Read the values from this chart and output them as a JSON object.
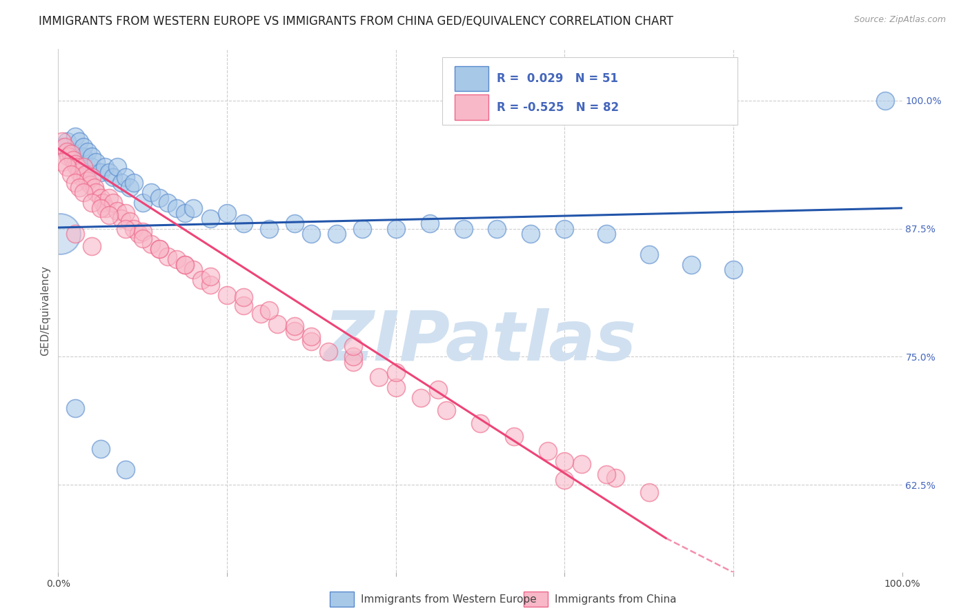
{
  "title": "IMMIGRANTS FROM WESTERN EUROPE VS IMMIGRANTS FROM CHINA GED/EQUIVALENCY CORRELATION CHART",
  "source_text": "Source: ZipAtlas.com",
  "ylabel": "GED/Equivalency",
  "right_yticks": [
    0.625,
    0.75,
    0.875,
    1.0
  ],
  "right_yticklabels": [
    "62.5%",
    "75.0%",
    "87.5%",
    "100.0%"
  ],
  "blue_R": "0.029",
  "blue_N": "51",
  "pink_R": "-0.525",
  "pink_N": "82",
  "blue_legend_label": "Immigrants from Western Europe",
  "pink_legend_label": "Immigrants from China",
  "blue_scatter_x": [
    0.005,
    0.01,
    0.015,
    0.02,
    0.02,
    0.025,
    0.025,
    0.03,
    0.03,
    0.035,
    0.04,
    0.04,
    0.045,
    0.05,
    0.055,
    0.06,
    0.065,
    0.07,
    0.075,
    0.08,
    0.085,
    0.09,
    0.1,
    0.11,
    0.12,
    0.13,
    0.14,
    0.15,
    0.16,
    0.18,
    0.2,
    0.22,
    0.25,
    0.28,
    0.3,
    0.33,
    0.36,
    0.4,
    0.44,
    0.48,
    0.52,
    0.56,
    0.6,
    0.65,
    0.7,
    0.75,
    0.8,
    0.02,
    0.05,
    0.08,
    0.98
  ],
  "blue_scatter_y": [
    0.955,
    0.96,
    0.95,
    0.945,
    0.965,
    0.94,
    0.96,
    0.945,
    0.955,
    0.95,
    0.935,
    0.945,
    0.94,
    0.93,
    0.935,
    0.93,
    0.925,
    0.935,
    0.92,
    0.925,
    0.915,
    0.92,
    0.9,
    0.91,
    0.905,
    0.9,
    0.895,
    0.89,
    0.895,
    0.885,
    0.89,
    0.88,
    0.875,
    0.88,
    0.87,
    0.87,
    0.875,
    0.875,
    0.88,
    0.875,
    0.875,
    0.87,
    0.875,
    0.87,
    0.85,
    0.84,
    0.835,
    0.7,
    0.66,
    0.64,
    1.0
  ],
  "pink_scatter_x": [
    0.005,
    0.008,
    0.01,
    0.012,
    0.015,
    0.018,
    0.02,
    0.022,
    0.025,
    0.028,
    0.03,
    0.032,
    0.035,
    0.038,
    0.04,
    0.043,
    0.045,
    0.05,
    0.053,
    0.056,
    0.06,
    0.065,
    0.07,
    0.075,
    0.08,
    0.085,
    0.09,
    0.095,
    0.1,
    0.11,
    0.12,
    0.13,
    0.14,
    0.15,
    0.16,
    0.17,
    0.18,
    0.2,
    0.22,
    0.24,
    0.26,
    0.28,
    0.3,
    0.32,
    0.35,
    0.38,
    0.4,
    0.43,
    0.46,
    0.5,
    0.54,
    0.58,
    0.62,
    0.66,
    0.7,
    0.005,
    0.01,
    0.015,
    0.02,
    0.025,
    0.03,
    0.04,
    0.05,
    0.06,
    0.08,
    0.1,
    0.12,
    0.15,
    0.18,
    0.22,
    0.25,
    0.28,
    0.3,
    0.35,
    0.4,
    0.45,
    0.6,
    0.65,
    0.02,
    0.04,
    0.35,
    0.6
  ],
  "pink_scatter_y": [
    0.96,
    0.955,
    0.95,
    0.945,
    0.948,
    0.942,
    0.938,
    0.935,
    0.93,
    0.925,
    0.935,
    0.928,
    0.922,
    0.918,
    0.925,
    0.915,
    0.91,
    0.905,
    0.9,
    0.895,
    0.905,
    0.9,
    0.892,
    0.885,
    0.89,
    0.882,
    0.875,
    0.87,
    0.872,
    0.86,
    0.855,
    0.848,
    0.845,
    0.84,
    0.835,
    0.825,
    0.82,
    0.81,
    0.8,
    0.792,
    0.782,
    0.775,
    0.765,
    0.755,
    0.745,
    0.73,
    0.72,
    0.71,
    0.698,
    0.685,
    0.672,
    0.658,
    0.645,
    0.632,
    0.618,
    0.94,
    0.935,
    0.928,
    0.92,
    0.915,
    0.91,
    0.9,
    0.895,
    0.888,
    0.875,
    0.865,
    0.855,
    0.84,
    0.828,
    0.808,
    0.795,
    0.78,
    0.77,
    0.75,
    0.735,
    0.718,
    0.648,
    0.635,
    0.87,
    0.858,
    0.76,
    0.63
  ],
  "blue_line": {
    "x": [
      0.0,
      1.0
    ],
    "y": [
      0.876,
      0.895
    ]
  },
  "pink_line_solid": {
    "x": [
      0.0,
      0.72
    ],
    "y": [
      0.953,
      0.573
    ]
  },
  "pink_line_dashed": {
    "x": [
      0.72,
      1.05
    ],
    "y": [
      0.573,
      0.435
    ]
  },
  "blue_scatter_color": "#a8c8e8",
  "blue_edge_color": "#5588cc",
  "pink_scatter_color": "#f8b8c8",
  "pink_edge_color": "#ee6688",
  "blue_line_color": "#2255aa",
  "pink_line_color": "#ee4477",
  "watermark_text": "ZIPatlas",
  "watermark_color": "#d0e0f0",
  "background_color": "#ffffff",
  "grid_color": "#cccccc",
  "title_fontsize": 12,
  "right_tick_color": "#4466bb"
}
